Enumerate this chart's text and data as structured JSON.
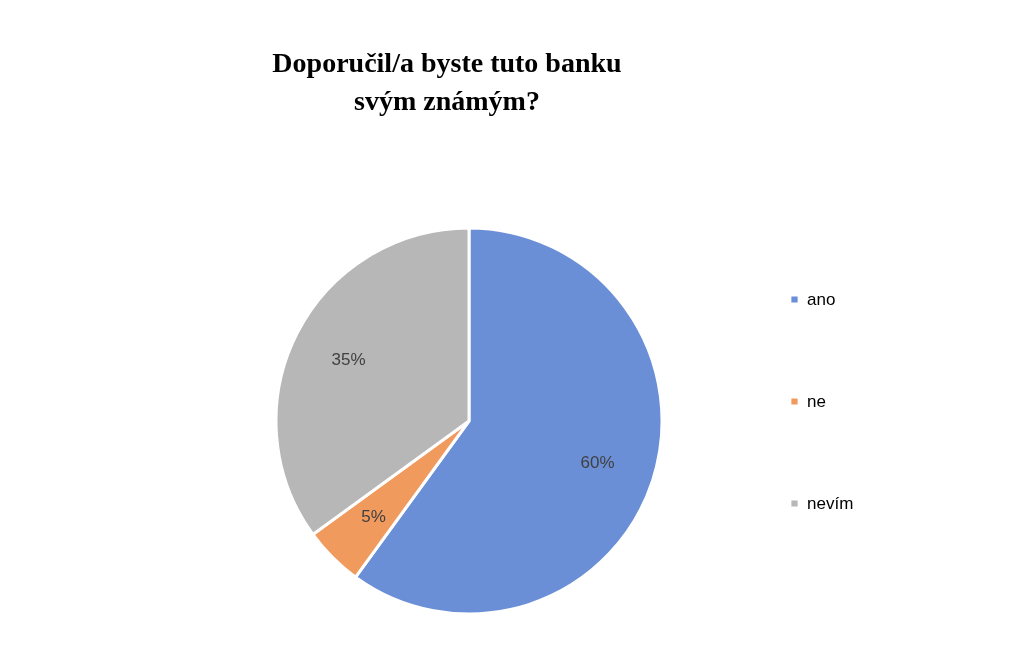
{
  "chart_data": {
    "type": "pie",
    "title": "Doporučil/a byste tuto banku svým známým?",
    "categories": [
      "ano",
      "ne",
      "nevím"
    ],
    "values": [
      60,
      5,
      35
    ],
    "colors": [
      "#6a8fd6",
      "#f19a5e",
      "#b7b7b7"
    ],
    "value_labels": [
      "60%",
      "5%",
      "35%"
    ],
    "legend": "right"
  }
}
